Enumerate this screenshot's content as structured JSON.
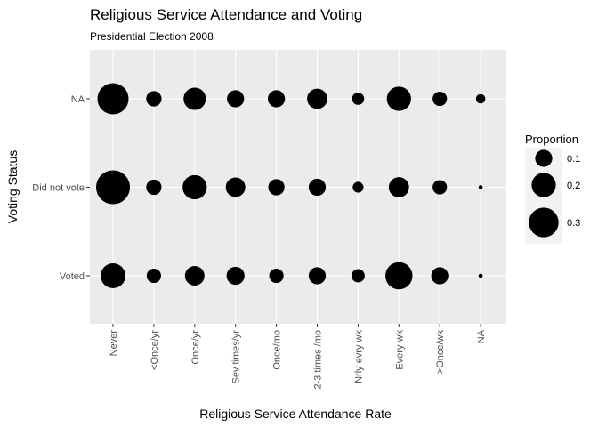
{
  "chart_data": {
    "type": "scatter",
    "title": "Religious Service Attendance and Voting",
    "subtitle": "Presidential Election 2008",
    "xlabel": "Religious Service Attendance Rate",
    "ylabel": "Voting Status",
    "categories": [
      "Never",
      "<Once/yr",
      "Once/yr",
      "Sev times/yr",
      "Once/mo",
      "2-3 times /mo",
      "Nrly evry wk",
      "Every wk",
      ">Once/wk",
      "NA"
    ],
    "y_categories": [
      "Voted",
      "Did not vote",
      "NA"
    ],
    "size_encoding": "Proportion",
    "series": [
      {
        "y": "NA",
        "values": [
          0.33,
          0.08,
          0.17,
          0.1,
          0.1,
          0.14,
          0.05,
          0.2,
          0.07,
          0.03
        ]
      },
      {
        "y": "Did not vote",
        "values": [
          0.39,
          0.08,
          0.2,
          0.13,
          0.09,
          0.1,
          0.04,
          0.14,
          0.07,
          0.006
        ]
      },
      {
        "y": "Voted",
        "values": [
          0.21,
          0.07,
          0.13,
          0.11,
          0.07,
          0.1,
          0.06,
          0.25,
          0.1,
          0.006
        ]
      }
    ],
    "legend": {
      "title": "Proportion",
      "entries": [
        {
          "label": "0.1",
          "value": 0.1
        },
        {
          "label": "0.2",
          "value": 0.2
        },
        {
          "label": "0.3",
          "value": 0.3
        }
      ],
      "placement": "right"
    },
    "grid": true,
    "colors": {
      "panel": "#ebebeb",
      "grid": "#ffffff",
      "point": "#000000",
      "legend_key": "#f2f2f2"
    }
  }
}
